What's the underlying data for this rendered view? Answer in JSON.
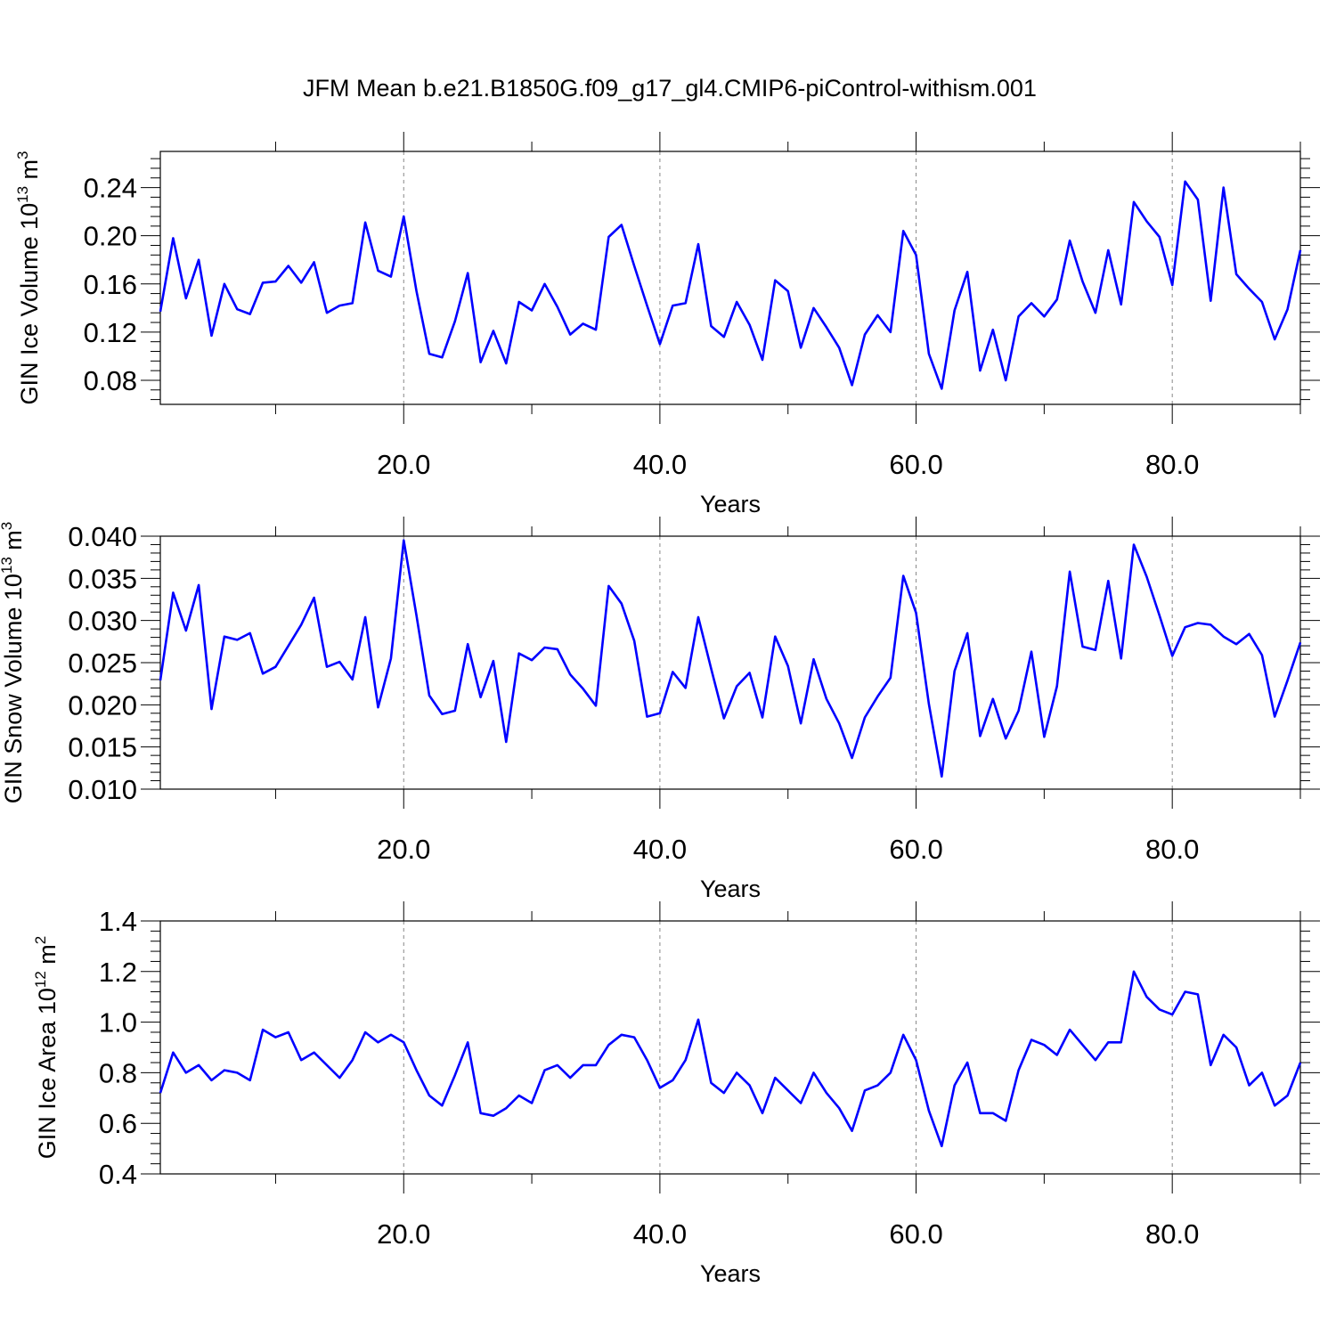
{
  "figure": {
    "title": "JFM Mean b.e21.B1850G.f09_g17_gl4.CMIP6-piControl-withism.001"
  },
  "chart_data": [
    {
      "type": "line",
      "title": "",
      "xlabel": "Years",
      "ylabel": {
        "text": "GIN Ice Volume 10",
        "sup": "13",
        "unit": " m",
        "unit_sup": "3"
      },
      "xlim": [
        1,
        90
      ],
      "ylim": [
        0.06,
        0.27
      ],
      "xticks": [
        20,
        40,
        60,
        80
      ],
      "xtick_labels": [
        "20.0",
        "40.0",
        "60.0",
        "80.0"
      ],
      "yticks": [
        0.08,
        0.12,
        0.16,
        0.2,
        0.24
      ],
      "ytick_labels": [
        "0.08",
        "0.12",
        "0.16",
        "0.20",
        "0.24"
      ],
      "xgrid": true,
      "line_color": "#0000ff",
      "x_start": 1,
      "values": [
        0.137,
        0.198,
        0.148,
        0.18,
        0.117,
        0.16,
        0.139,
        0.135,
        0.161,
        0.162,
        0.175,
        0.161,
        0.178,
        0.136,
        0.142,
        0.144,
        0.211,
        0.171,
        0.166,
        0.216,
        0.154,
        0.102,
        0.099,
        0.129,
        0.169,
        0.095,
        0.121,
        0.094,
        0.145,
        0.138,
        0.16,
        0.141,
        0.118,
        0.127,
        0.122,
        0.199,
        0.209,
        0.175,
        0.142,
        0.11,
        0.142,
        0.144,
        0.193,
        0.125,
        0.116,
        0.145,
        0.126,
        0.097,
        0.163,
        0.154,
        0.107,
        0.14,
        0.124,
        0.107,
        0.076,
        0.118,
        0.134,
        0.12,
        0.204,
        0.184,
        0.102,
        0.073,
        0.138,
        0.17,
        0.088,
        0.122,
        0.08,
        0.133,
        0.144,
        0.133,
        0.147,
        0.196,
        0.162,
        0.136,
        0.188,
        0.143,
        0.228,
        0.212,
        0.199,
        0.159,
        0.245,
        0.23,
        0.146,
        0.24,
        0.168,
        0.156,
        0.145,
        0.114,
        0.139,
        0.188
      ]
    },
    {
      "type": "line",
      "title": "",
      "xlabel": "Years",
      "ylabel": {
        "text": "GIN Snow Volume 10",
        "sup": "13",
        "unit": " m",
        "unit_sup": "3"
      },
      "xlim": [
        1,
        90
      ],
      "ylim": [
        0.01,
        0.04
      ],
      "xticks": [
        20,
        40,
        60,
        80
      ],
      "xtick_labels": [
        "20.0",
        "40.0",
        "60.0",
        "80.0"
      ],
      "yticks": [
        0.01,
        0.015,
        0.02,
        0.025,
        0.03,
        0.035,
        0.04
      ],
      "ytick_labels": [
        "0.010",
        "0.015",
        "0.020",
        "0.025",
        "0.030",
        "0.035",
        "0.040"
      ],
      "xgrid": true,
      "line_color": "#0000ff",
      "x_start": 1,
      "values": [
        0.0229,
        0.0333,
        0.0288,
        0.0342,
        0.0195,
        0.0281,
        0.0277,
        0.0285,
        0.0237,
        0.0245,
        0.027,
        0.0295,
        0.0327,
        0.0245,
        0.0251,
        0.023,
        0.0304,
        0.0197,
        0.0255,
        0.0395,
        0.0306,
        0.0211,
        0.0189,
        0.0193,
        0.0272,
        0.0209,
        0.0252,
        0.0156,
        0.0261,
        0.0253,
        0.0268,
        0.0266,
        0.0236,
        0.0219,
        0.0199,
        0.0341,
        0.032,
        0.0276,
        0.0186,
        0.019,
        0.0239,
        0.022,
        0.0304,
        0.0243,
        0.0184,
        0.0222,
        0.0238,
        0.0185,
        0.0281,
        0.0246,
        0.0178,
        0.0254,
        0.0207,
        0.0178,
        0.0137,
        0.0185,
        0.021,
        0.0232,
        0.0353,
        0.0309,
        0.0201,
        0.0115,
        0.024,
        0.0285,
        0.0163,
        0.0207,
        0.016,
        0.0193,
        0.0263,
        0.0162,
        0.0222,
        0.0358,
        0.0269,
        0.0265,
        0.0347,
        0.0255,
        0.039,
        0.0352,
        0.0306,
        0.0258,
        0.0292,
        0.0297,
        0.0295,
        0.0281,
        0.0272,
        0.0284,
        0.0259,
        0.0186,
        0.0229,
        0.0274
      ]
    },
    {
      "type": "line",
      "title": "",
      "xlabel": "Years",
      "ylabel": {
        "text": "GIN Ice Area 10",
        "sup": "12",
        "unit": " m",
        "unit_sup": "2"
      },
      "xlim": [
        1,
        90
      ],
      "ylim": [
        0.4,
        1.4
      ],
      "xticks": [
        20,
        40,
        60,
        80
      ],
      "xtick_labels": [
        "20.0",
        "40.0",
        "60.0",
        "80.0"
      ],
      "yticks": [
        0.4,
        0.6,
        0.8,
        1.0,
        1.2,
        1.4
      ],
      "ytick_labels": [
        "0.4",
        "0.6",
        "0.8",
        "1.0",
        "1.2",
        "1.4"
      ],
      "xgrid": true,
      "line_color": "#0000ff",
      "x_start": 1,
      "values": [
        0.72,
        0.88,
        0.8,
        0.83,
        0.77,
        0.81,
        0.8,
        0.77,
        0.97,
        0.94,
        0.96,
        0.85,
        0.88,
        0.83,
        0.78,
        0.85,
        0.96,
        0.92,
        0.95,
        0.92,
        0.81,
        0.71,
        0.67,
        0.79,
        0.92,
        0.64,
        0.63,
        0.66,
        0.71,
        0.68,
        0.81,
        0.83,
        0.78,
        0.83,
        0.83,
        0.91,
        0.95,
        0.94,
        0.85,
        0.74,
        0.77,
        0.85,
        1.01,
        0.76,
        0.72,
        0.8,
        0.75,
        0.64,
        0.78,
        0.73,
        0.68,
        0.8,
        0.72,
        0.66,
        0.57,
        0.73,
        0.75,
        0.8,
        0.95,
        0.85,
        0.65,
        0.51,
        0.75,
        0.84,
        0.64,
        0.64,
        0.61,
        0.81,
        0.93,
        0.91,
        0.87,
        0.97,
        0.91,
        0.85,
        0.92,
        0.92,
        1.2,
        1.1,
        1.05,
        1.03,
        1.12,
        1.11,
        0.83,
        0.95,
        0.9,
        0.75,
        0.8,
        0.67,
        0.71,
        0.84
      ]
    }
  ]
}
